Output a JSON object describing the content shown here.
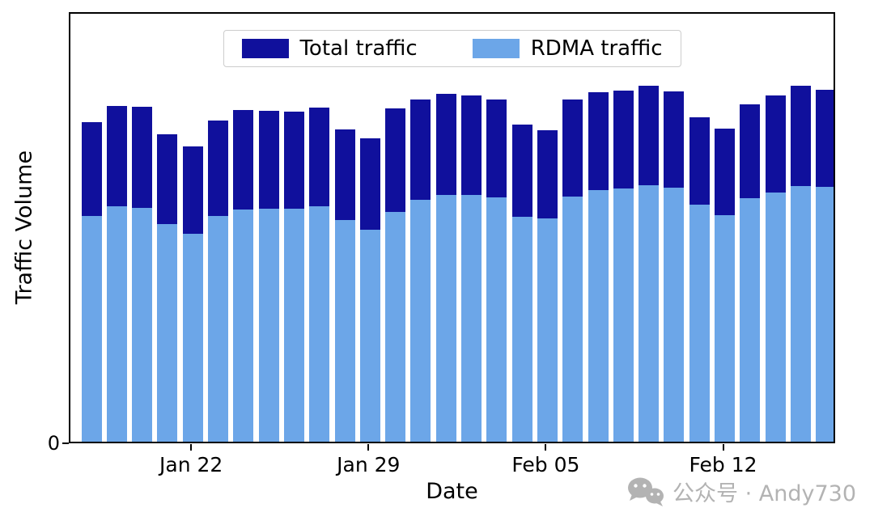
{
  "chart_data": {
    "type": "bar",
    "title": "",
    "xlabel": "Date",
    "ylabel": "Traffic Volume",
    "grid": false,
    "legend_position": "upper center",
    "ylim": [
      0,
      1.0
    ],
    "y_tick_labels": [
      "0"
    ],
    "x_ticks": [
      {
        "label": "Jan 22",
        "index": 4
      },
      {
        "label": "Jan 29",
        "index": 11
      },
      {
        "label": "Feb 05",
        "index": 18
      },
      {
        "label": "Feb 12",
        "index": 25
      }
    ],
    "categories": [
      "Jan 18",
      "Jan 19",
      "Jan 20",
      "Jan 21",
      "Jan 22",
      "Jan 23",
      "Jan 24",
      "Jan 25",
      "Jan 26",
      "Jan 27",
      "Jan 28",
      "Jan 29",
      "Jan 30",
      "Jan 31",
      "Feb 01",
      "Feb 02",
      "Feb 03",
      "Feb 04",
      "Feb 05",
      "Feb 06",
      "Feb 07",
      "Feb 08",
      "Feb 09",
      "Feb 10",
      "Feb 11",
      "Feb 12",
      "Feb 13",
      "Feb 14",
      "Feb 15",
      "Feb 16"
    ],
    "series": [
      {
        "name": "Total traffic",
        "color": "#10109c",
        "values": [
          0.747,
          0.784,
          0.782,
          0.719,
          0.69,
          0.75,
          0.775,
          0.773,
          0.771,
          0.78,
          0.73,
          0.709,
          0.779,
          0.799,
          0.812,
          0.809,
          0.799,
          0.741,
          0.728,
          0.799,
          0.816,
          0.82,
          0.831,
          0.818,
          0.758,
          0.732,
          0.788,
          0.809,
          0.831,
          0.822
        ]
      },
      {
        "name": "RDMA traffic",
        "color": "#6ca6e8",
        "values": [
          0.527,
          0.55,
          0.546,
          0.508,
          0.486,
          0.527,
          0.542,
          0.544,
          0.544,
          0.55,
          0.518,
          0.495,
          0.537,
          0.565,
          0.576,
          0.576,
          0.57,
          0.525,
          0.522,
          0.572,
          0.587,
          0.591,
          0.6,
          0.593,
          0.553,
          0.529,
          0.569,
          0.583,
          0.597,
          0.595
        ]
      }
    ]
  },
  "watermark": {
    "text": "公众号 · Andy730",
    "icon": "wechat-icon",
    "color": "#b3b3b3"
  }
}
